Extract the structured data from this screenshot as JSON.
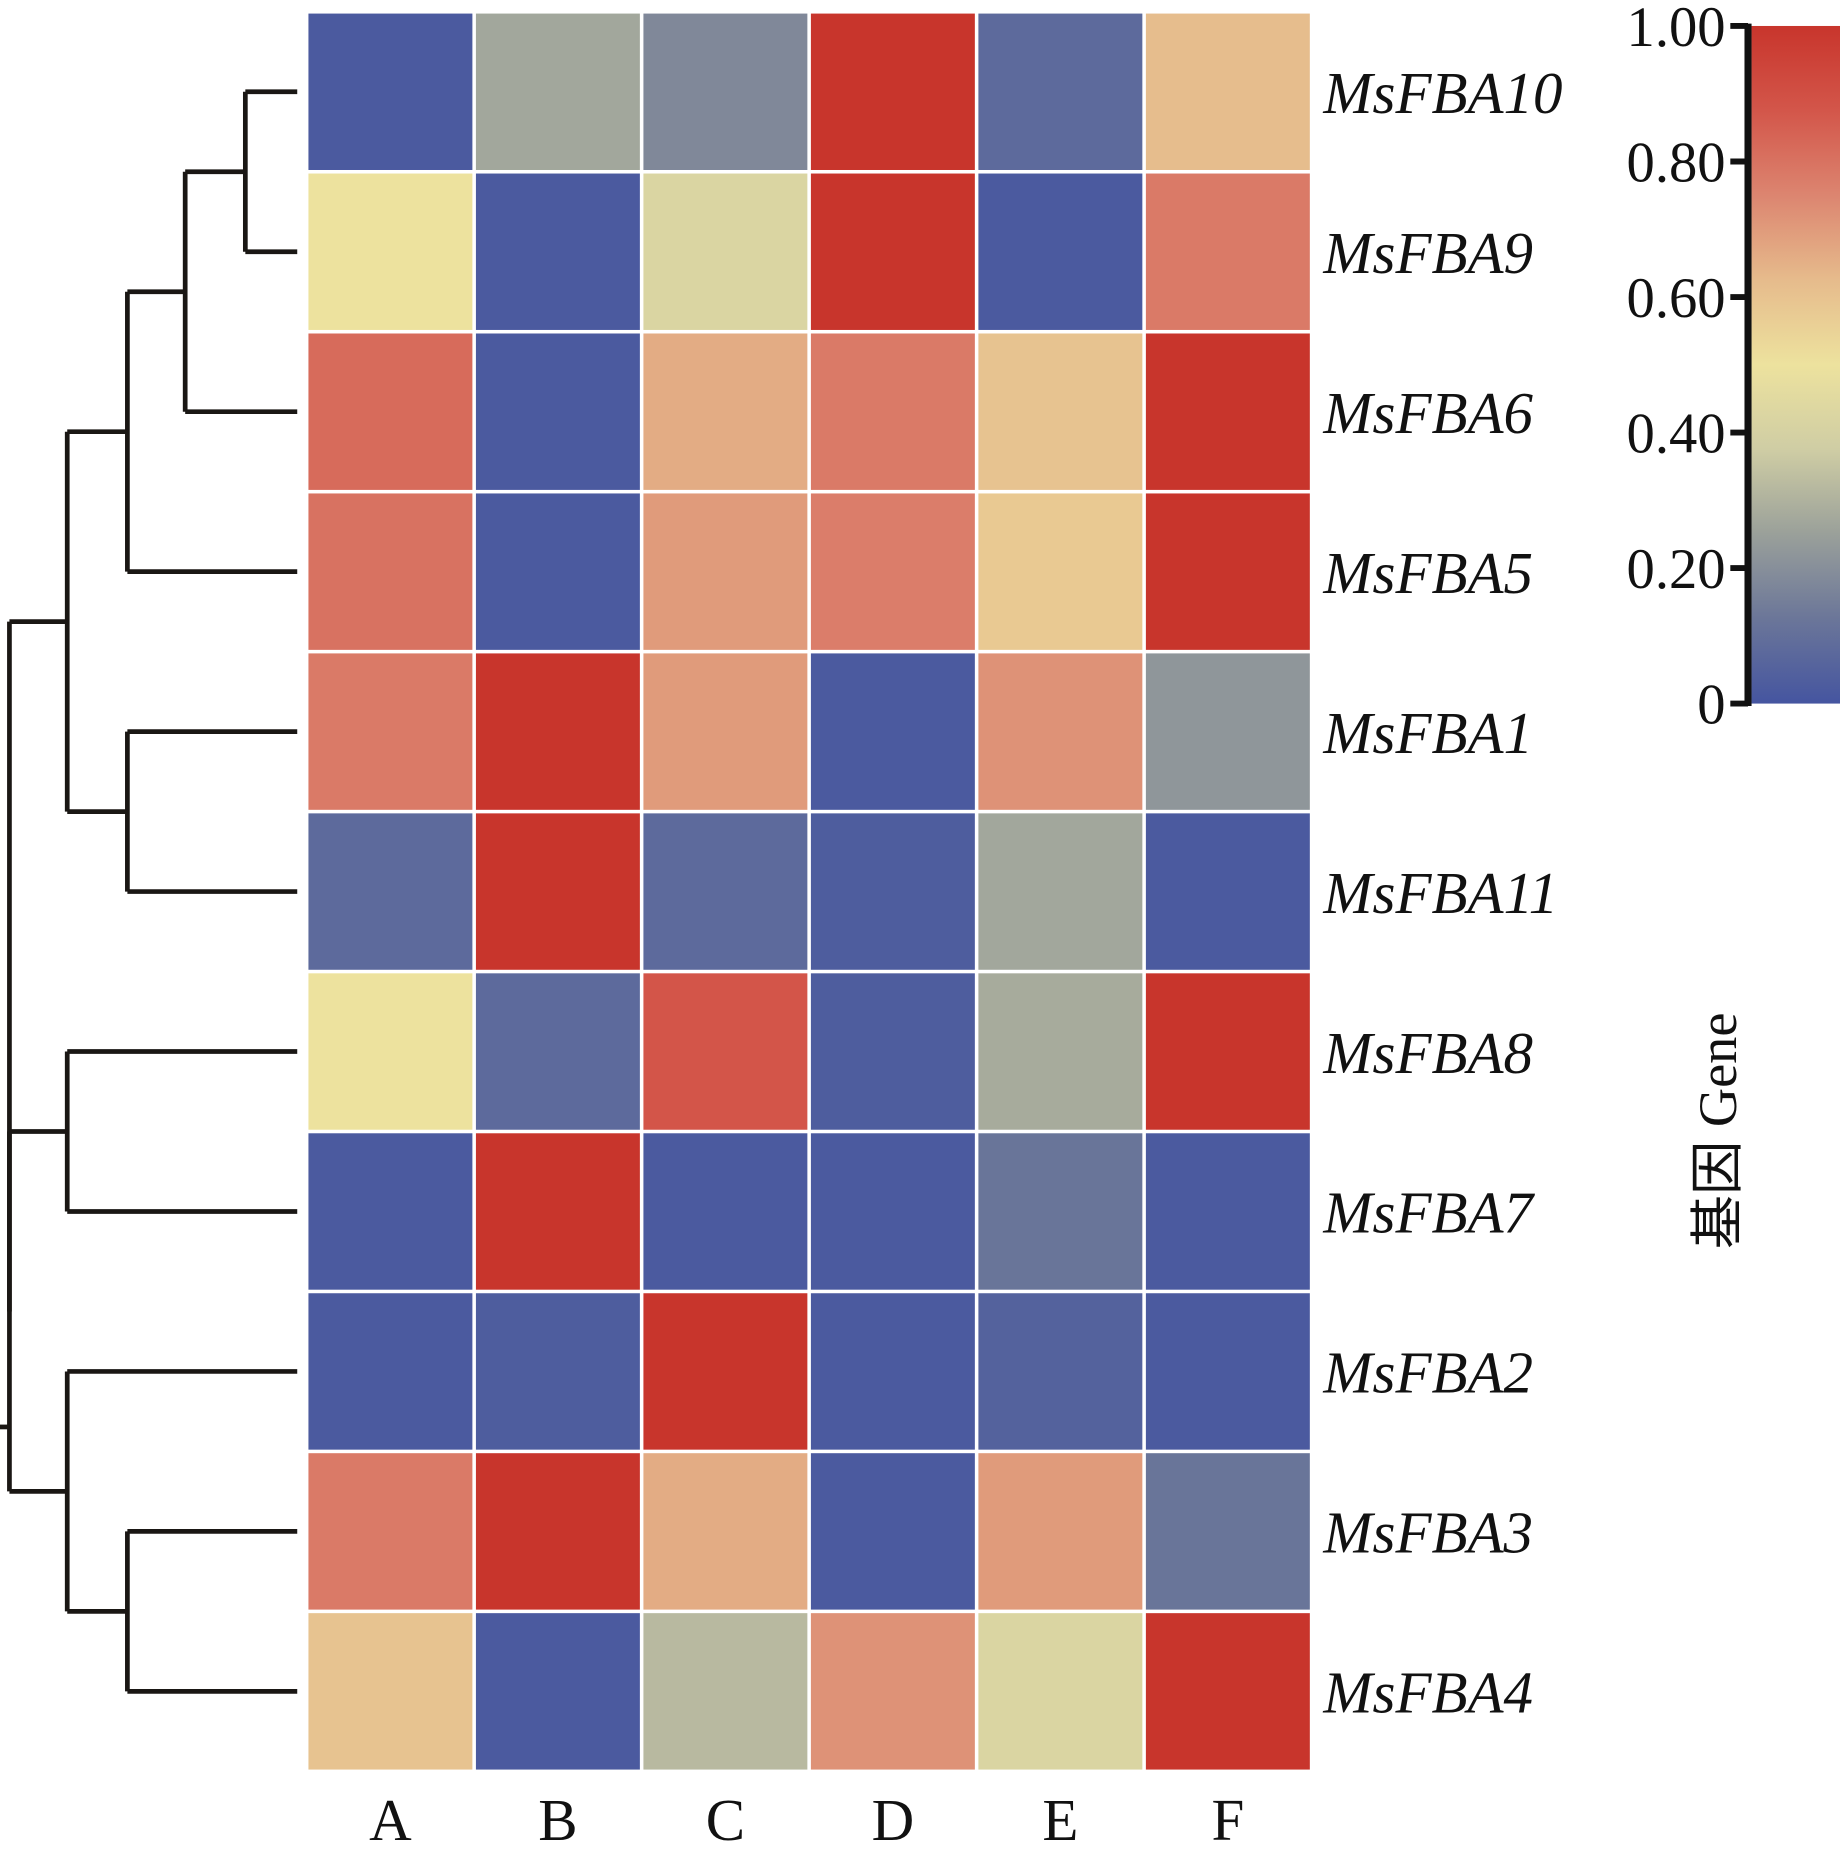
{
  "chart_data": {
    "type": "heatmap",
    "title": "",
    "xlabel": "",
    "ylabel": "",
    "columns": [
      "A",
      "B",
      "C",
      "D",
      "E",
      "F"
    ],
    "rows": [
      "MsFBA10",
      "MsFBA9",
      "MsFBA6",
      "MsFBA5",
      "MsFBA1",
      "MsFBA11",
      "MsFBA8",
      "MsFBA7",
      "MsFBA2",
      "MsFBA3",
      "MsFBA4"
    ],
    "values": [
      [
        0.02,
        0.27,
        0.18,
        1.0,
        0.08,
        0.62
      ],
      [
        0.5,
        0.02,
        0.42,
        1.0,
        0.02,
        0.78
      ],
      [
        0.82,
        0.02,
        0.66,
        0.78,
        0.6,
        1.0
      ],
      [
        0.8,
        0.02,
        0.7,
        0.77,
        0.58,
        1.0
      ],
      [
        0.78,
        1.0,
        0.7,
        0.02,
        0.72,
        0.22
      ],
      [
        0.08,
        1.0,
        0.08,
        0.03,
        0.27,
        0.02
      ],
      [
        0.5,
        0.08,
        0.88,
        0.03,
        0.28,
        1.0
      ],
      [
        0.02,
        1.0,
        0.02,
        0.02,
        0.12,
        0.02
      ],
      [
        0.02,
        0.03,
        1.0,
        0.02,
        0.05,
        0.02
      ],
      [
        0.78,
        1.0,
        0.66,
        0.02,
        0.7,
        0.12
      ],
      [
        0.6,
        0.02,
        0.32,
        0.72,
        0.42,
        1.0
      ]
    ],
    "colorbar": {
      "title": "基因 Gene",
      "range": [
        0,
        1.0
      ],
      "ticks": [
        0,
        0.2,
        0.4,
        0.6,
        0.8,
        1.0
      ],
      "tick_labels": [
        "0",
        "0.20",
        "0.40",
        "0.60",
        "0.80",
        "1.00"
      ],
      "colors": [
        "#4555a0",
        "#6b7699",
        "#9aa09a",
        "#cfcda4",
        "#ede29e",
        "#e6bb8c",
        "#dc8570",
        "#d3564a",
        "#c8352c"
      ]
    },
    "dendrogram": {
      "side": "left",
      "clusters": [
        [
          [
            "MsFBA10",
            "MsFBA9"
          ],
          "MsFBA6"
        ],
        "MsFBA5",
        [
          "MsFBA1",
          "MsFBA11"
        ],
        [
          "MsFBA8",
          "MsFBA7"
        ],
        [
          "MsFBA2",
          [
            "MsFBA3",
            "MsFBA4"
          ]
        ]
      ]
    },
    "grid": false,
    "legend": "right"
  }
}
